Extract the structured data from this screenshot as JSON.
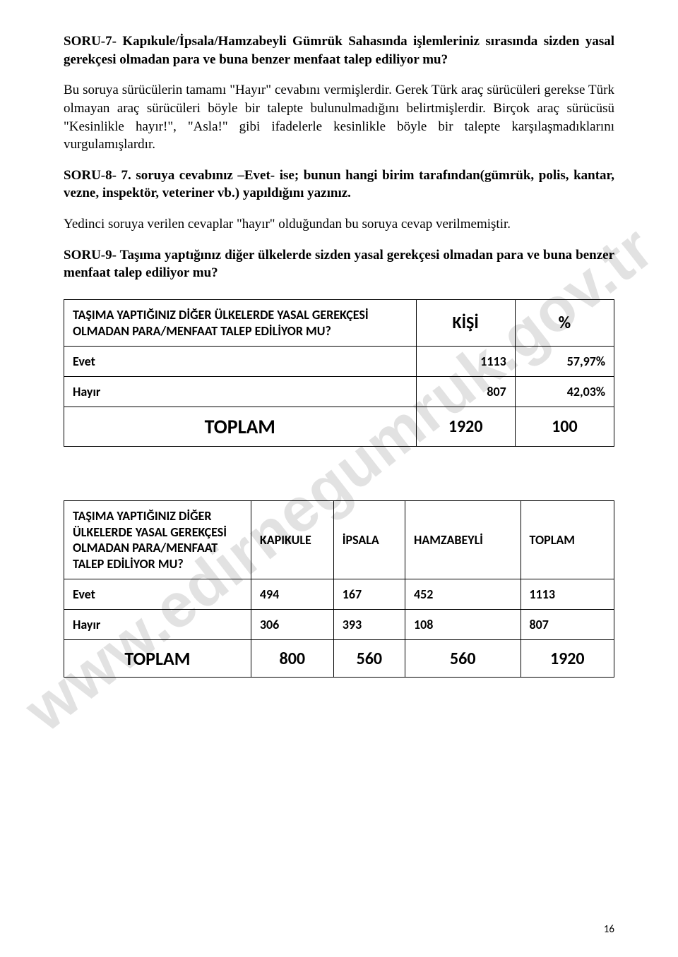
{
  "watermark": "www.edirnegumruk.gov.tr",
  "page_number": "16",
  "paragraphs": {
    "p1": "SORU-7- Kapıkule/İpsala/Hamzabeyli Gümrük Sahasında işlemleriniz sırasında sizden yasal gerekçesi olmadan para ve buna benzer menfaat talep ediliyor mu?",
    "p2": "Bu soruya sürücülerin tamamı \"Hayır\" cevabını vermişlerdir. Gerek Türk araç sürücüleri gerekse Türk olmayan araç sürücüleri böyle bir talepte bulunulmadığını belirtmişlerdir. Birçok araç sürücüsü \"Kesinlikle hayır!\", \"Asla!\" gibi ifadelerle kesinlikle böyle bir talepte karşılaşmadıklarını vurgulamışlardır.",
    "p3": "SORU-8- 7. soruya cevabınız –Evet- ise; bunun hangi birim tarafından(gümrük, polis, kantar, vezne, inspektör, veteriner vb.) yapıldığını yazınız.",
    "p4": "Yedinci soruya verilen cevaplar \"hayır\" olduğundan bu soruya cevap verilmemiştir.",
    "p5": "SORU-9- Taşıma yaptığınız diğer ülkelerde sizden yasal gerekçesi olmadan para ve buna benzer menfaat talep ediliyor mu?"
  },
  "table1": {
    "header": {
      "label": "TAŞIMA YAPTIĞINIZ DİĞER ÜLKELERDE YASAL GEREKÇESİ OLMADAN PARA/MENFAAT TALEP EDİLİYOR MU?",
      "col1": "KİŞİ",
      "col2": "%"
    },
    "rows": [
      {
        "label": "Evet",
        "kisi": "1113",
        "pct": "57,97%"
      },
      {
        "label": "Hayır",
        "kisi": "807",
        "pct": "42,03%"
      }
    ],
    "total": {
      "label": "TOPLAM",
      "kisi": "1920",
      "pct": "100"
    },
    "col_widths": [
      "64%",
      "18%",
      "18%"
    ]
  },
  "table2": {
    "header": {
      "label": "TAŞIMA YAPTIĞINIZ DİĞER ÜLKELERDE YASAL GEREKÇESİ OLMADAN PARA/MENFAAT TALEP EDİLİYOR MU?",
      "c1": "KAPIKULE",
      "c2": "İPSALA",
      "c3": "HAMZABEYLİ",
      "c4": "TOPLAM"
    },
    "rows": [
      {
        "label": "Evet",
        "v1": "494",
        "v2": "167",
        "v3": "452",
        "v4": "1113"
      },
      {
        "label": "Hayır",
        "v1": "306",
        "v2": "393",
        "v3": "108",
        "v4": "807"
      }
    ],
    "total": {
      "label": "TOPLAM",
      "v1": "800",
      "v2": "560",
      "v3": "560",
      "v4": "1920"
    },
    "col_widths": [
      "34%",
      "15%",
      "13%",
      "21%",
      "17%"
    ]
  }
}
